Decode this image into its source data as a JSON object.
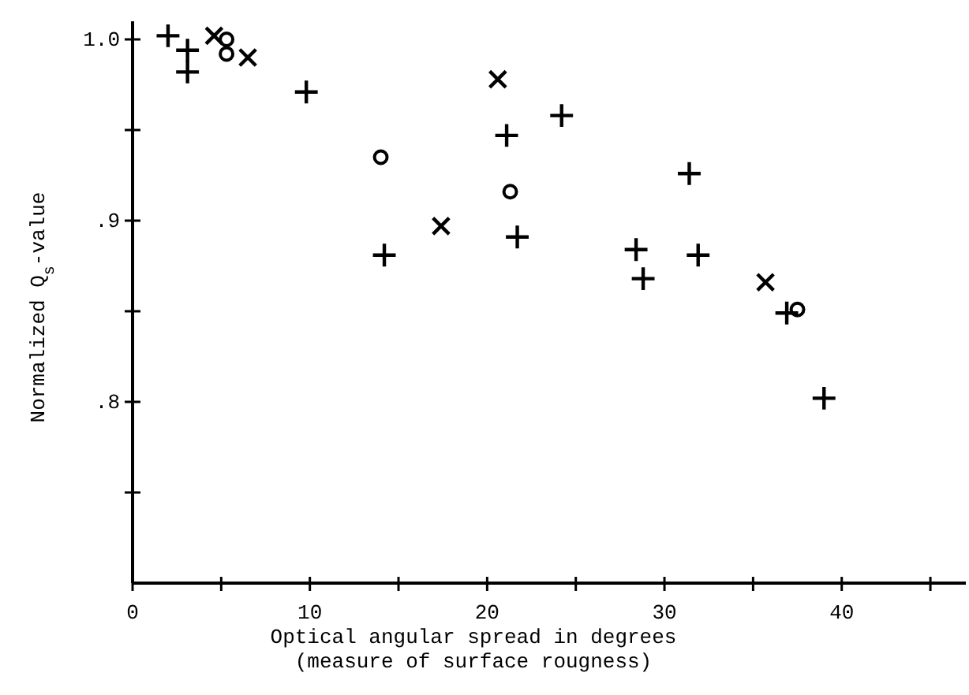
{
  "chart_data": {
    "type": "scatter",
    "xlabel": "Optical angular spread in degrees\n(measure of surface rougness)",
    "ylabel": "Normalized Q$_{s}$-value",
    "xlim": [
      0,
      47
    ],
    "ylim": [
      0.7,
      1.01
    ],
    "xticks": [
      0,
      {
        "value": 5,
        "label": null
      },
      10,
      {
        "value": 15,
        "label": null
      },
      20,
      {
        "value": 25,
        "label": null
      },
      30,
      {
        "value": 35,
        "label": null
      },
      40,
      {
        "value": 45,
        "label": null
      }
    ],
    "yticks": [
      {
        "value": 0.75,
        "label": null
      },
      {
        "value": 0.8,
        "label": ".8"
      },
      {
        "value": 0.85,
        "label": null
      },
      {
        "value": 0.9,
        "label": ".9"
      },
      {
        "value": 0.95,
        "label": null
      },
      {
        "value": 1.0,
        "label": "1.0"
      }
    ],
    "series": [
      {
        "color": "#000000",
        "marker": "plus",
        "x": [
          2.0,
          3.1,
          3.1,
          9.8,
          14.2,
          21.1,
          21.7,
          24.2,
          28.4,
          28.8,
          31.4,
          31.9,
          36.9,
          39.0
        ],
        "values": [
          1.002,
          0.994,
          0.982,
          0.971,
          0.881,
          0.947,
          0.891,
          0.958,
          0.884,
          0.868,
          0.926,
          0.881,
          0.849,
          0.802
        ]
      },
      {
        "color": "#000000",
        "marker": "cross",
        "x": [
          4.6,
          6.5,
          17.4,
          20.6,
          35.7
        ],
        "values": [
          1.002,
          0.99,
          0.897,
          0.978,
          0.866
        ]
      },
      {
        "color": "#000000",
        "marker": "circle",
        "x": [
          5.3,
          5.3,
          14.0,
          21.3,
          37.5
        ],
        "values": [
          1.0,
          0.992,
          0.935,
          0.916,
          0.851
        ]
      }
    ]
  }
}
